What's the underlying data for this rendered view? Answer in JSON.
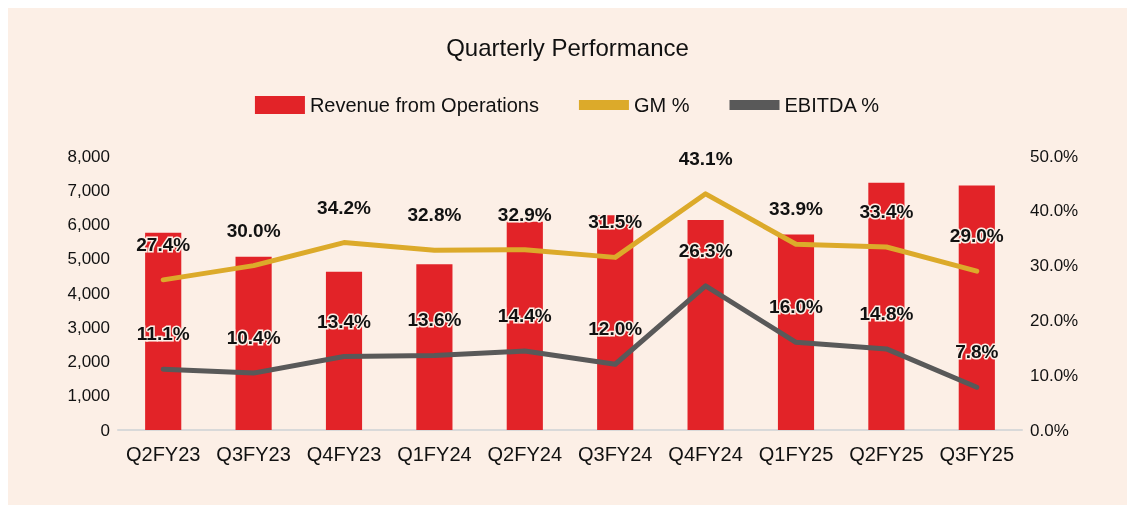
{
  "chart_data": {
    "type": "bar",
    "title": "Quarterly Performance",
    "categories": [
      "Q2FY23",
      "Q3FY23",
      "Q4FY23",
      "Q1FY24",
      "Q2FY24",
      "Q3FY24",
      "Q4FY24",
      "Q1FY25",
      "Q2FY25",
      "Q3FY25"
    ],
    "series": [
      {
        "name": "Revenue from Operations",
        "color": "#e22328",
        "values": [
          5760,
          5060,
          4620,
          4840,
          6080,
          6270,
          6130,
          5710,
          7220,
          7140
        ]
      },
      {
        "name": "GM %",
        "type": "line",
        "axis": "y2",
        "color": "#dcaa2a",
        "values": [
          27.4,
          30.0,
          34.2,
          32.8,
          32.9,
          31.5,
          43.1,
          33.9,
          33.4,
          29.0
        ],
        "value_labels": [
          "27.4%",
          "30.0%",
          "34.2%",
          "32.8%",
          "32.9%",
          "31.5%",
          "43.1%",
          "33.9%",
          "33.4%",
          "29.0%"
        ]
      },
      {
        "name": "EBITDA %",
        "type": "line",
        "axis": "y2",
        "color": "#595959",
        "values": [
          11.1,
          10.4,
          13.4,
          13.6,
          14.4,
          12.0,
          26.3,
          16.0,
          14.8,
          7.8
        ],
        "value_labels": [
          "11.1%",
          "10.4%",
          "13.4%",
          "13.6%",
          "14.4%",
          "12.0%",
          "26.3%",
          "16.0%",
          "14.8%",
          "7.8%"
        ]
      }
    ],
    "ylim": [
      0,
      8000
    ],
    "yticks": [
      0,
      {
        "value": 1000,
        "label": "1,000"
      },
      {
        "value": 2000,
        "label": "2,000"
      },
      {
        "value": 3000,
        "label": "3,000"
      },
      {
        "value": 4000,
        "label": "4,000"
      },
      {
        "value": 5000,
        "label": "5,000"
      },
      {
        "value": 6000,
        "label": "6,000"
      },
      {
        "value": 7000,
        "label": "7,000"
      },
      {
        "value": 8000,
        "label": "8,000"
      }
    ],
    "y2lim": [
      0,
      50
    ],
    "y2ticks": [
      {
        "value": 0,
        "label": "0.0%"
      },
      {
        "value": 10,
        "label": "10.0%"
      },
      {
        "value": 20,
        "label": "20.0%"
      },
      {
        "value": 30,
        "label": "30.0%"
      },
      {
        "value": 40,
        "label": "40.0%"
      },
      {
        "value": 50,
        "label": "50.0%"
      }
    ],
    "legend": "top",
    "grid": false,
    "marker": "none",
    "line_style": "solid"
  }
}
